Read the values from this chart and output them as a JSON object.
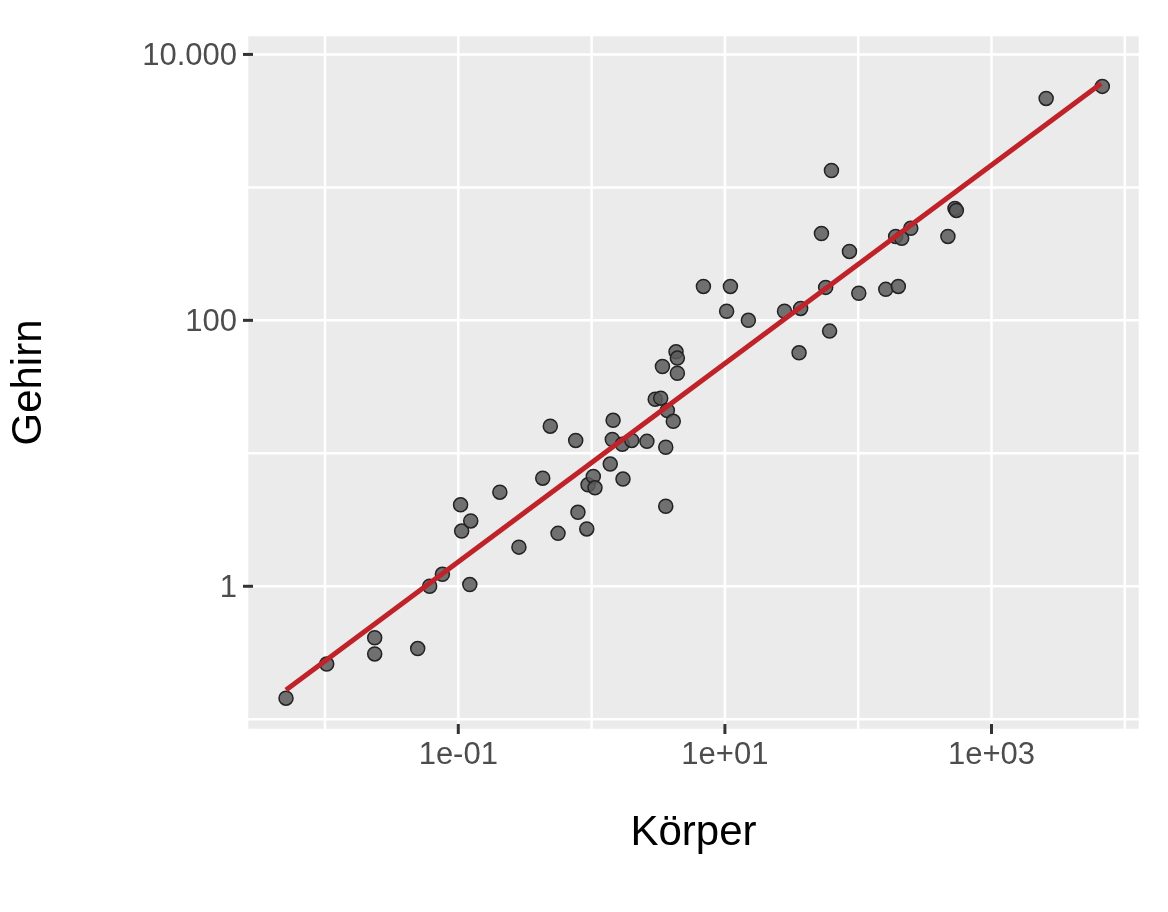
{
  "chart_data": {
    "type": "scatter",
    "xlabel": "Körper",
    "ylabel": "Gehirn",
    "log": "xy",
    "grid": true,
    "marker": "circle",
    "xlim": [
      0.0026,
      13000
    ],
    "ylim": [
      0.083,
      14000
    ],
    "xticks": [
      {
        "value": 0.01,
        "label": null
      },
      {
        "value": 0.1,
        "label": "1e-01"
      },
      {
        "value": 1,
        "label": null
      },
      {
        "value": 10,
        "label": "1e+01"
      },
      {
        "value": 100,
        "label": null
      },
      {
        "value": 1000,
        "label": "1e+03"
      },
      {
        "value": 10000,
        "label": null
      }
    ],
    "yticks": [
      {
        "value": 0.1,
        "label": null
      },
      {
        "value": 1,
        "label": "1"
      },
      {
        "value": 10,
        "label": null
      },
      {
        "value": 100,
        "label": "100"
      },
      {
        "value": 1000,
        "label": null
      },
      {
        "value": 10000,
        "label": "10.000"
      }
    ],
    "series": [
      {
        "color": "#5a5a5a",
        "x": [
          0.0051,
          0.0103,
          0.0236,
          0.0236,
          0.0496,
          0.061,
          0.076,
          0.104,
          0.106,
          0.124,
          0.122,
          0.205,
          0.285,
          0.43,
          0.49,
          0.56,
          0.76,
          0.79,
          0.92,
          0.94,
          1.03,
          1.06,
          1.38,
          1.43,
          1.45,
          1.7,
          1.72,
          2.0,
          2.6,
          3.0,
          3.3,
          3.4,
          3.6,
          3.6,
          3.7,
          4.1,
          4.3,
          4.4,
          4.4,
          6.9,
          10.3,
          11,
          15,
          28,
          36,
          37,
          53,
          57,
          61,
          63,
          86,
          101,
          161,
          191,
          200,
          212,
          248,
          471,
          532,
          545,
          2570,
          6780
        ],
        "values": [
          0.144,
          0.26,
          0.41,
          0.31,
          0.34,
          1.0,
          1.23,
          4.1,
          2.6,
          3.1,
          1.03,
          5.1,
          1.97,
          6.5,
          16,
          2.5,
          12.5,
          3.6,
          2.7,
          5.8,
          6.7,
          5.5,
          8.3,
          12.7,
          17.7,
          11.7,
          6.4,
          12.5,
          12.3,
          25.5,
          26,
          45,
          11.1,
          4.0,
          21,
          17.4,
          58,
          52,
          40,
          180,
          117,
          180,
          100,
          117,
          57,
          123,
          450,
          177,
          83,
          1340,
          330,
          160,
          171,
          428,
          180,
          414,
          492,
          428,
          695,
          671,
          4670,
          5750
        ]
      },
      {
        "type": "line",
        "color": "#c0222a",
        "marker": "none",
        "x": [
          0.0051,
          6650
        ],
        "values": [
          0.166,
          6040
        ]
      }
    ]
  }
}
